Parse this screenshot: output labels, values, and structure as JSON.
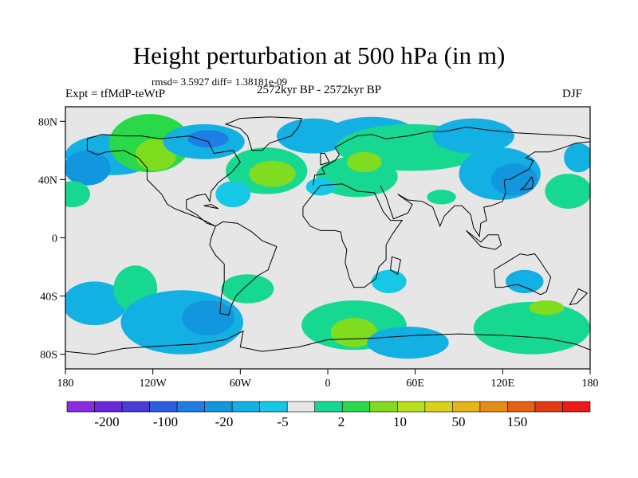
{
  "chart_data": {
    "type": "heatmap",
    "title": "Height perturbation at 500 hPa (in m)",
    "stats_text": "rmsd= 3.5927 diff= 1.38181e-09",
    "left_label": "Expt = tfMdP-teWtP",
    "center_label": "2572kyr BP - 2572kyr BP",
    "right_label": "DJF",
    "xlim": [
      -180,
      180
    ],
    "ylim": [
      -90,
      90
    ],
    "x_ticks": [
      {
        "value": -180,
        "label": "180"
      },
      {
        "value": -120,
        "label": "120W"
      },
      {
        "value": -60,
        "label": "60W"
      },
      {
        "value": 0,
        "label": "0"
      },
      {
        "value": 60,
        "label": "60E"
      },
      {
        "value": 120,
        "label": "120E"
      },
      {
        "value": 180,
        "label": "180"
      }
    ],
    "y_ticks": [
      {
        "value": 80,
        "label": "80N"
      },
      {
        "value": 40,
        "label": "40N"
      },
      {
        "value": 0,
        "label": "0"
      },
      {
        "value": -40,
        "label": "40S"
      },
      {
        "value": -80,
        "label": "80S"
      }
    ],
    "colorbar": {
      "colors": [
        "#8a2be2",
        "#6a28d8",
        "#4a3ad8",
        "#2b5fe0",
        "#1e7ee6",
        "#1296de",
        "#13b0e3",
        "#16c8e6",
        "#e6e6e6",
        "#17d890",
        "#2ad94a",
        "#7fdc1e",
        "#b8e01a",
        "#d8d21a",
        "#e8b418",
        "#e48c16",
        "#e46214",
        "#e23a12",
        "#ee1a1a"
      ],
      "labels": [
        "-200",
        "-100",
        "-20",
        "-5",
        "2",
        "10",
        "50",
        "150"
      ]
    },
    "anomalies": [
      {
        "lon": -148,
        "lat": 57,
        "rx": 32,
        "ry": 14,
        "value": -6
      },
      {
        "lon": -165,
        "lat": 48,
        "rx": 16,
        "ry": 12,
        "value": -12
      },
      {
        "lon": -175,
        "lat": 30,
        "rx": 12,
        "ry": 9,
        "value": 4
      },
      {
        "lon": -122,
        "lat": 65,
        "rx": 28,
        "ry": 20,
        "value": 6
      },
      {
        "lon": -118,
        "lat": 57,
        "rx": 14,
        "ry": 11,
        "value": 12
      },
      {
        "lon": -85,
        "lat": 66,
        "rx": 28,
        "ry": 12,
        "value": -6
      },
      {
        "lon": -82,
        "lat": 68,
        "rx": 14,
        "ry": 6,
        "value": -25
      },
      {
        "lon": -42,
        "lat": 46,
        "rx": 28,
        "ry": 16,
        "value": 5
      },
      {
        "lon": -38,
        "lat": 44,
        "rx": 16,
        "ry": 9,
        "value": 12
      },
      {
        "lon": -65,
        "lat": 30,
        "rx": 12,
        "ry": 9,
        "value": -4
      },
      {
        "lon": -10,
        "lat": 70,
        "rx": 25,
        "ry": 12,
        "value": -6
      },
      {
        "lon": 30,
        "lat": 72,
        "rx": 30,
        "ry": 11,
        "value": -6
      },
      {
        "lon": 58,
        "lat": 62,
        "rx": 52,
        "ry": 16,
        "value": 4
      },
      {
        "lon": 20,
        "lat": 42,
        "rx": 28,
        "ry": 14,
        "value": 5
      },
      {
        "lon": 25,
        "lat": 52,
        "rx": 12,
        "ry": 7,
        "value": 12
      },
      {
        "lon": -5,
        "lat": 35,
        "rx": 10,
        "ry": 6,
        "value": -4
      },
      {
        "lon": 100,
        "lat": 70,
        "rx": 28,
        "ry": 12,
        "value": -5
      },
      {
        "lon": 118,
        "lat": 44,
        "rx": 28,
        "ry": 18,
        "value": -6
      },
      {
        "lon": 128,
        "lat": 40,
        "rx": 16,
        "ry": 11,
        "value": -12
      },
      {
        "lon": 78,
        "lat": 28,
        "rx": 10,
        "ry": 5,
        "value": 4
      },
      {
        "lon": 165,
        "lat": 32,
        "rx": 16,
        "ry": 12,
        "value": 4
      },
      {
        "lon": 172,
        "lat": 55,
        "rx": 10,
        "ry": 10,
        "value": -6
      },
      {
        "lon": -160,
        "lat": -45,
        "rx": 22,
        "ry": 15,
        "value": -5
      },
      {
        "lon": -132,
        "lat": -35,
        "rx": 15,
        "ry": 16,
        "value": 4
      },
      {
        "lon": -128,
        "lat": -50,
        "rx": 7,
        "ry": 4,
        "value": 12
      },
      {
        "lon": -100,
        "lat": -58,
        "rx": 42,
        "ry": 22,
        "value": -6
      },
      {
        "lon": -82,
        "lat": -55,
        "rx": 18,
        "ry": 12,
        "value": -18
      },
      {
        "lon": -55,
        "lat": -35,
        "rx": 18,
        "ry": 10,
        "value": 4
      },
      {
        "lon": 18,
        "lat": -60,
        "rx": 36,
        "ry": 17,
        "value": 4
      },
      {
        "lon": 18,
        "lat": -65,
        "rx": 16,
        "ry": 10,
        "value": 12
      },
      {
        "lon": 55,
        "lat": -72,
        "rx": 28,
        "ry": 11,
        "value": -6
      },
      {
        "lon": 42,
        "lat": -30,
        "rx": 12,
        "ry": 8,
        "value": -4
      },
      {
        "lon": 140,
        "lat": -62,
        "rx": 40,
        "ry": 18,
        "value": 4
      },
      {
        "lon": 135,
        "lat": -30,
        "rx": 13,
        "ry": 8,
        "value": -5
      },
      {
        "lon": 150,
        "lat": -48,
        "rx": 12,
        "ry": 5,
        "value": 12
      }
    ]
  }
}
